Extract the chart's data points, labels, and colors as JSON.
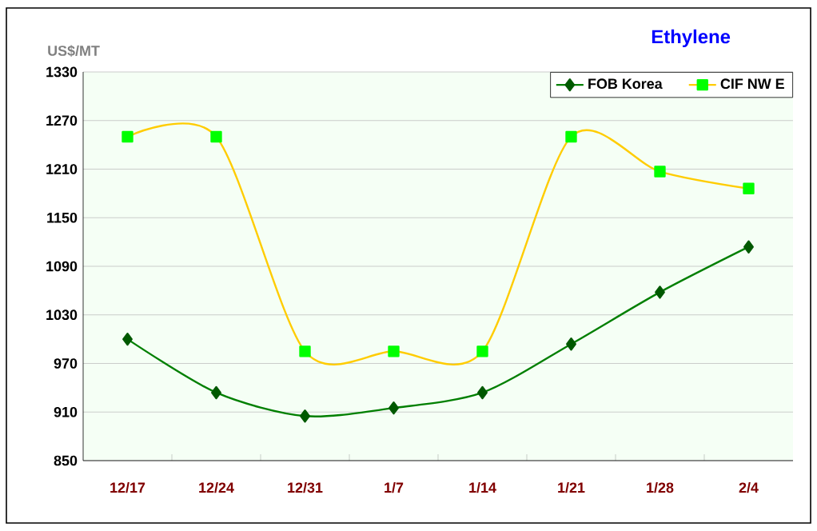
{
  "chart_data": {
    "type": "line",
    "title": "Ethylene",
    "ylabel": "US$/MT",
    "categories": [
      "12/17",
      "12/24",
      "12/31",
      "1/7",
      "1/14",
      "1/21",
      "1/28",
      "2/4"
    ],
    "series": [
      {
        "name": "FOB Korea",
        "color": "#007f00",
        "marker": "diamond",
        "values": [
          1000,
          934,
          905,
          915,
          934,
          994,
          1058,
          1114
        ]
      },
      {
        "name": "CIF NW E",
        "color": "#ffcc00",
        "marker": "square",
        "values": [
          1250,
          1250,
          985,
          985,
          985,
          1250,
          1207,
          1186
        ]
      }
    ],
    "ylim": [
      850,
      1330
    ],
    "yticks": [
      850,
      910,
      970,
      1030,
      1090,
      1150,
      1210,
      1270,
      1330
    ],
    "grid": "y",
    "legend": "top right"
  }
}
